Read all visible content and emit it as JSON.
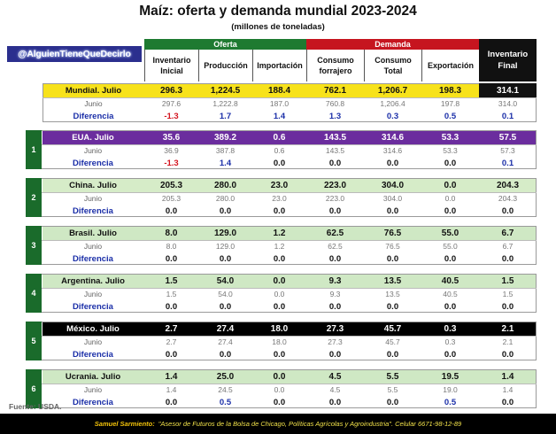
{
  "title": "Maíz: oferta y demanda mundial 2023-2024",
  "subtitle": "(millones de toneladas)",
  "handle": "@AlguienTieneQueDecirlo",
  "groups": {
    "oferta": "Oferta",
    "demanda": "Demanda"
  },
  "columns": [
    "Inventario\nInicial",
    "Producción",
    "Importación",
    "Consumo\nforrajero",
    "Consumo\nTotal",
    "Exportación",
    "Inventario\nFinal"
  ],
  "colors": {
    "oferta": "#1e7a31",
    "demanda": "#c6151f",
    "final": "#111111",
    "mundial": "#f7e21b",
    "eua": "#6b2d9e",
    "china": "#d6ecc8",
    "brasil": "#cfe8c4",
    "argentina": "#cfe8c4",
    "mexico": "#000000",
    "ucrania": "#cfe8c4",
    "neg": "#d4141f",
    "pos": "#1b2fa8"
  },
  "blocks": [
    {
      "num": "",
      "main_label": "Mundial. Julio",
      "main": [
        "296.3",
        "1,224.5",
        "188.4",
        "762.1",
        "1,206.7",
        "198.3",
        "314.1"
      ],
      "sub_label": "Junio",
      "sub": [
        "297.6",
        "1,222.8",
        "187.0",
        "760.8",
        "1,206.4",
        "197.8",
        "314.0"
      ],
      "diff_label": "Diferencia",
      "diff": [
        "-1.3",
        "1.7",
        "1.4",
        "1.3",
        "0.3",
        "0.5",
        "0.1"
      ]
    },
    {
      "num": "1",
      "main_label": "EUA. Julio",
      "main": [
        "35.6",
        "389.2",
        "0.6",
        "143.5",
        "314.6",
        "53.3",
        "57.5"
      ],
      "sub_label": "Junio",
      "sub": [
        "36.9",
        "387.8",
        "0.6",
        "143.5",
        "314.6",
        "53.3",
        "57.3"
      ],
      "diff_label": "Diferencia",
      "diff": [
        "-1.3",
        "1.4",
        "0.0",
        "0.0",
        "0.0",
        "0.0",
        "0.1"
      ]
    },
    {
      "num": "2",
      "main_label": "China. Julio",
      "main": [
        "205.3",
        "280.0",
        "23.0",
        "223.0",
        "304.0",
        "0.0",
        "204.3"
      ],
      "sub_label": "Junio",
      "sub": [
        "205.3",
        "280.0",
        "23.0",
        "223.0",
        "304.0",
        "0.0",
        "204.3"
      ],
      "diff_label": "Diferencia",
      "diff": [
        "0.0",
        "0.0",
        "0.0",
        "0.0",
        "0.0",
        "0.0",
        "0.0"
      ]
    },
    {
      "num": "3",
      "main_label": "Brasil. Julio",
      "main": [
        "8.0",
        "129.0",
        "1.2",
        "62.5",
        "76.5",
        "55.0",
        "6.7"
      ],
      "sub_label": "Junio",
      "sub": [
        "8.0",
        "129.0",
        "1.2",
        "62.5",
        "76.5",
        "55.0",
        "6.7"
      ],
      "diff_label": "Diferencia",
      "diff": [
        "0.0",
        "0.0",
        "0.0",
        "0.0",
        "0.0",
        "0.0",
        "0.0"
      ]
    },
    {
      "num": "4",
      "main_label": "Argentina. Julio",
      "main": [
        "1.5",
        "54.0",
        "0.0",
        "9.3",
        "13.5",
        "40.5",
        "1.5"
      ],
      "sub_label": "Junio",
      "sub": [
        "1.5",
        "54.0",
        "0.0",
        "9.3",
        "13.5",
        "40.5",
        "1.5"
      ],
      "diff_label": "Diferencia",
      "diff": [
        "0.0",
        "0.0",
        "0.0",
        "0.0",
        "0.0",
        "0.0",
        "0.0"
      ]
    },
    {
      "num": "5",
      "main_label": "México. Julio",
      "main": [
        "2.7",
        "27.4",
        "18.0",
        "27.3",
        "45.7",
        "0.3",
        "2.1"
      ],
      "sub_label": "Junio",
      "sub": [
        "2.7",
        "27.4",
        "18.0",
        "27.3",
        "45.7",
        "0.3",
        "2.1"
      ],
      "diff_label": "Diferencia",
      "diff": [
        "0.0",
        "0.0",
        "0.0",
        "0.0",
        "0.0",
        "0.0",
        "0.0"
      ]
    },
    {
      "num": "6",
      "main_label": "Ucrania. Julio",
      "main": [
        "1.4",
        "25.0",
        "0.0",
        "4.5",
        "5.5",
        "19.5",
        "1.4"
      ],
      "sub_label": "Junio",
      "sub": [
        "1.4",
        "24.5",
        "0.0",
        "4.5",
        "5.5",
        "19.0",
        "1.4"
      ],
      "diff_label": "Diferencia",
      "diff": [
        "0.0",
        "0.5",
        "0.0",
        "0.0",
        "0.0",
        "0.5",
        "0.0"
      ]
    }
  ],
  "source": "Fuente: USDA.",
  "footer": {
    "name": "Samuel Sarmiento:",
    "text": "\"Asesor de Futuros de la Bolsa de Chicago, Políticas Agrícolas y Agroindustria\". Celular 6671-98-12-89"
  }
}
